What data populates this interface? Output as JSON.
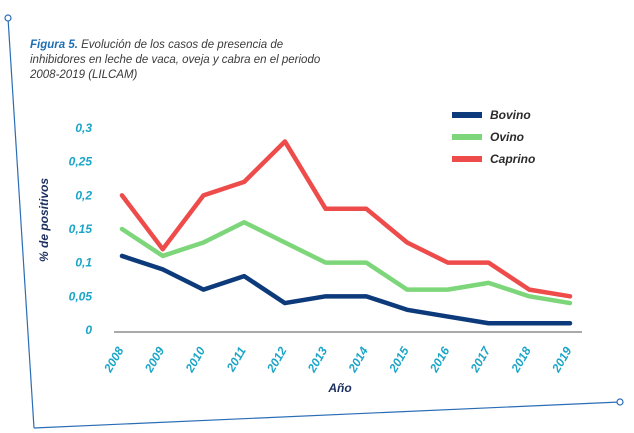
{
  "caption": {
    "label": "Figura 5.",
    "text": " Evolución de los casos de presencia de inhibidores en leche de vaca, oveja y cabra en el periodo 2008-2019 (LILCAM)"
  },
  "colors": {
    "frame": "#2a6db5",
    "tick": "#1aa5c8",
    "axis_title": "#1c2f5e"
  },
  "chart_data": {
    "type": "line",
    "title": "",
    "xlabel": "Año",
    "ylabel": "% de positivos",
    "x": [
      "2008",
      "2009",
      "2010",
      "2011",
      "2012",
      "2013",
      "2014",
      "2015",
      "2016",
      "2017",
      "2018",
      "2019"
    ],
    "yticks": [
      "0",
      "0,05",
      "0,1",
      "0,15",
      "0,2",
      "0,25",
      "0,3"
    ],
    "ylim": [
      0,
      0.3
    ],
    "grid": false,
    "legend_position": "top-right",
    "series": [
      {
        "name": "Bovino",
        "color": "#0d3a7a",
        "values": [
          0.11,
          0.09,
          0.06,
          0.08,
          0.04,
          0.05,
          0.05,
          0.03,
          0.02,
          0.01,
          0.01,
          0.01
        ]
      },
      {
        "name": "Ovino",
        "color": "#7dd67a",
        "values": [
          0.15,
          0.11,
          0.13,
          0.16,
          0.13,
          0.1,
          0.1,
          0.06,
          0.06,
          0.07,
          0.05,
          0.04
        ]
      },
      {
        "name": "Caprino",
        "color": "#ee4b4b",
        "values": [
          0.2,
          0.12,
          0.2,
          0.22,
          0.28,
          0.18,
          0.18,
          0.13,
          0.1,
          0.1,
          0.06,
          0.05
        ]
      }
    ]
  }
}
